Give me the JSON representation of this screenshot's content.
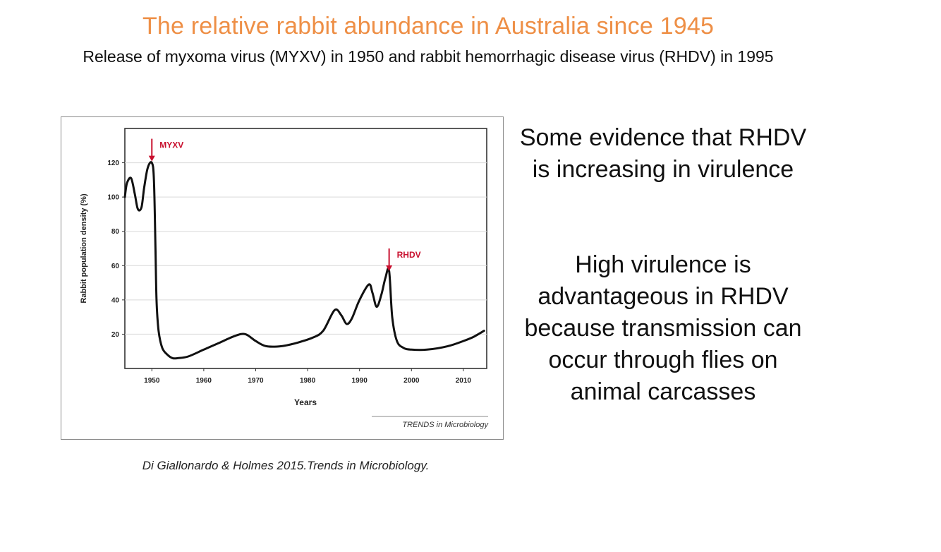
{
  "slide": {
    "title": "The relative rabbit abundance in Australia since 1945",
    "subtitle": "Release of myxoma virus (MYXV) in 1950 and rabbit hemorrhagic disease virus (RHDV) in 1995",
    "citation": "Di Giallonardo & Holmes 2015.Trends in Microbiology.",
    "side_text_1": "Some evidence that RHDV is increasing in virulence",
    "side_text_2": "High virulence is advantageous in RHDV because transmission can occur through flies on animal carcasses"
  },
  "colors": {
    "title": "#ee8f46",
    "annotation": "#c8102e",
    "line": "#111111",
    "grid": "#d9d9d9"
  },
  "chart_data": {
    "type": "line",
    "title": "",
    "xlabel": "Years",
    "ylabel": "Rabbit population density (%)",
    "source_label": "TRENDS in Microbiology",
    "xlim": [
      1944.8,
      2014.5
    ],
    "ylim": [
      0,
      140
    ],
    "xticks": [
      1950,
      1960,
      1970,
      1980,
      1990,
      2000,
      2010
    ],
    "yticks": [
      20,
      40,
      60,
      80,
      100,
      120
    ],
    "grid": true,
    "series": [
      {
        "name": "Rabbit population density",
        "x": [
          1944.8,
          1945.2,
          1946,
          1946.7,
          1947.3,
          1948,
          1948.5,
          1949.2,
          1950,
          1950.4,
          1950.7,
          1950.9,
          1951.3,
          1952,
          1953,
          1954,
          1955,
          1957,
          1960,
          1963,
          1966,
          1968,
          1970,
          1972,
          1975,
          1978,
          1981,
          1983,
          1985.2,
          1986.5,
          1987.5,
          1988.5,
          1990,
          1991.8,
          1992.5,
          1993.3,
          1994.2,
          1995,
          1995.7,
          1996.3,
          1997.2,
          1998.5,
          2000,
          2003,
          2007,
          2010,
          2012,
          2014
        ],
        "values": [
          100,
          108,
          111,
          102,
          93,
          94,
          105,
          117,
          120,
          110,
          70,
          40,
          22,
          12,
          8,
          6,
          6,
          7,
          11,
          15,
          19,
          20,
          16,
          13,
          13,
          15,
          18,
          22,
          34,
          31,
          26,
          29,
          40,
          49,
          44,
          36,
          43,
          53,
          57,
          30,
          16,
          12,
          11,
          11,
          13,
          16,
          18.5,
          22
        ]
      }
    ],
    "annotations": [
      {
        "label": "MYXV",
        "x": 1950,
        "y": 134
      },
      {
        "label": "RHDV",
        "x": 1995.7,
        "y": 70
      }
    ]
  }
}
